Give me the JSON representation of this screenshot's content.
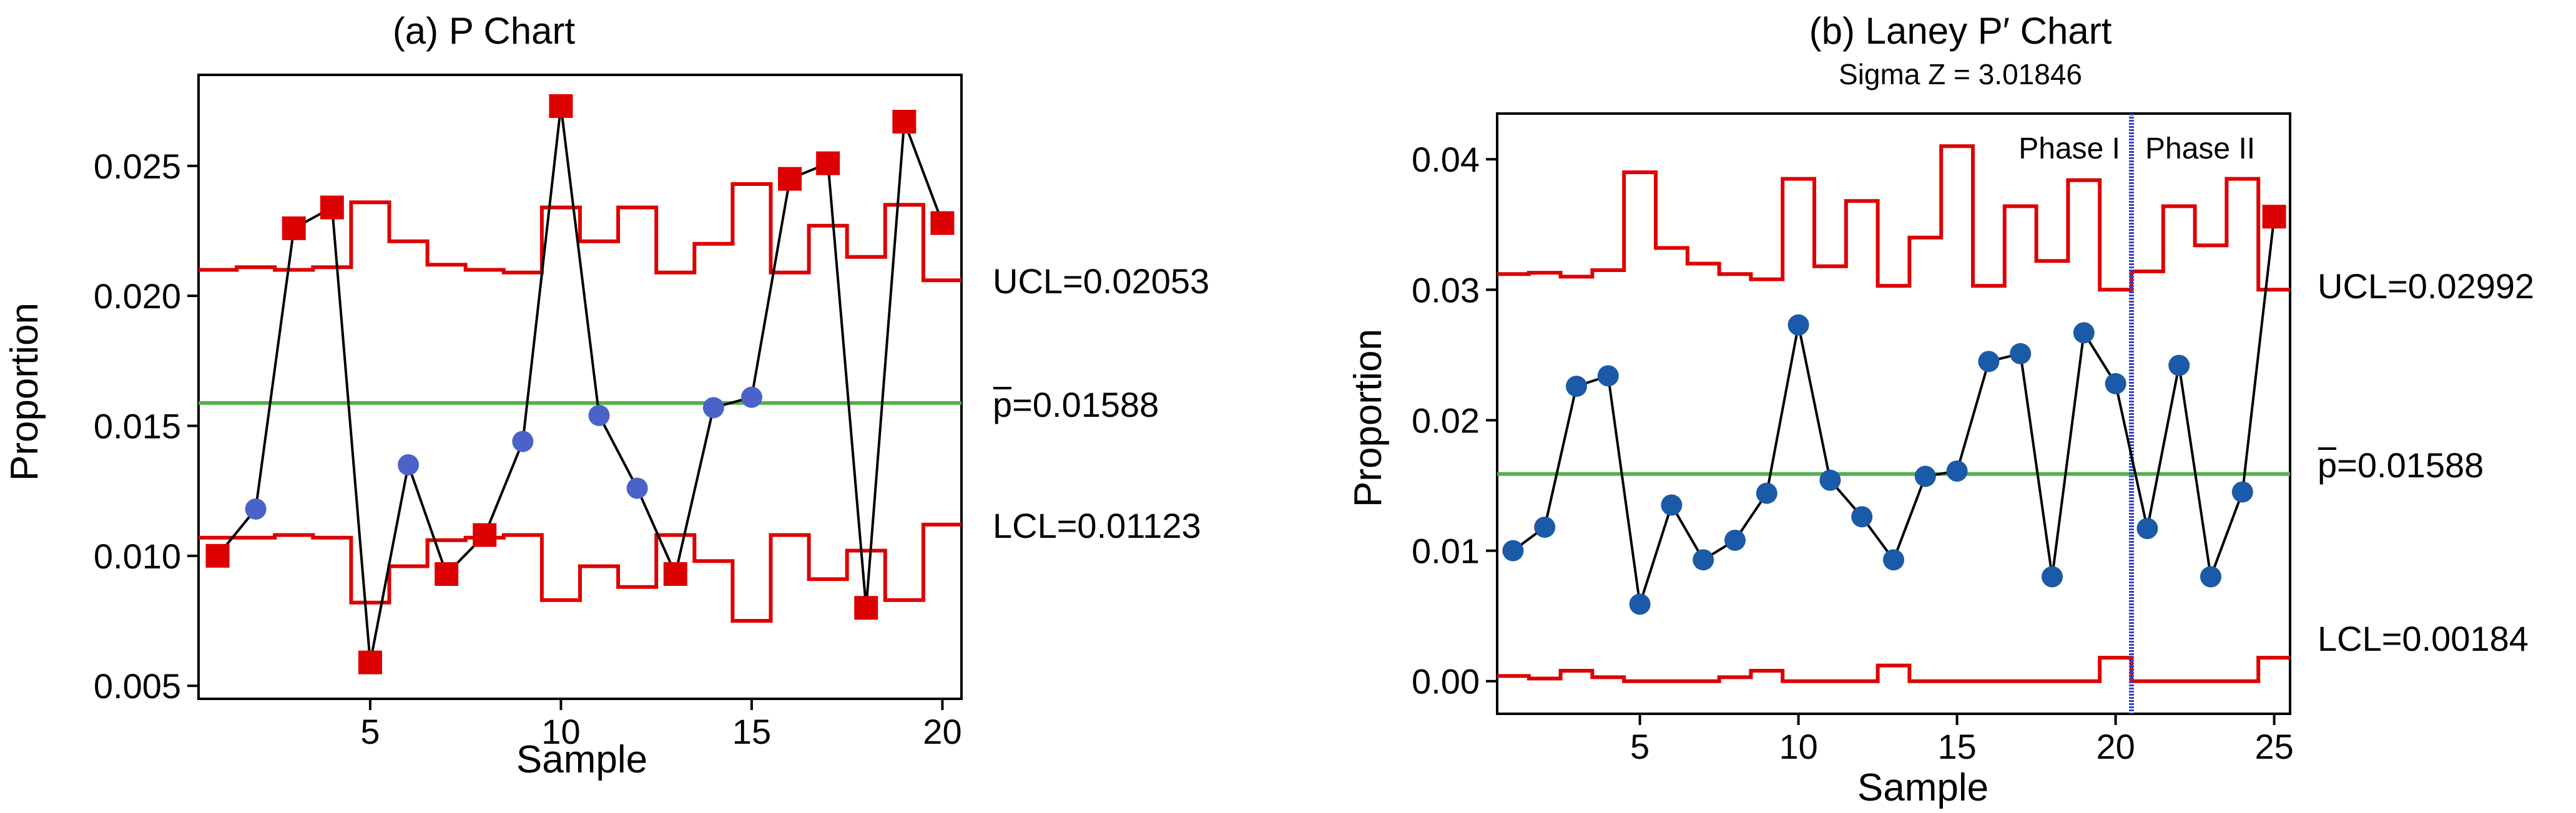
{
  "chart_data": [
    {
      "type": "line",
      "title": "(a) P Chart",
      "subtitle": "",
      "xlabel": "Sample",
      "ylabel": "Proportion",
      "xlim": [
        0.5,
        20.5
      ],
      "ylim": [
        0.0045,
        0.0285
      ],
      "xticks": [
        5,
        10,
        15,
        20
      ],
      "yticks": [
        0.005,
        0.01,
        0.015,
        0.02,
        0.025
      ],
      "ytick_labels": [
        "0.005",
        "0.010",
        "0.015",
        "0.020",
        "0.025"
      ],
      "center_line": 0.01588,
      "labels": {
        "ucl": "UCL=0.02053",
        "center_prefix": "p",
        "center_value": "=0.01588",
        "lcl": "LCL=0.01123"
      },
      "x": [
        1,
        2,
        3,
        4,
        5,
        6,
        7,
        8,
        9,
        10,
        11,
        12,
        13,
        14,
        15,
        16,
        17,
        18,
        19,
        20
      ],
      "values": [
        0.01,
        0.0118,
        0.0226,
        0.0234,
        0.0059,
        0.0135,
        0.0093,
        0.0108,
        0.0144,
        0.0273,
        0.0154,
        0.0126,
        0.0093,
        0.0157,
        0.0161,
        0.0245,
        0.0251,
        0.008,
        0.0267,
        0.0228
      ],
      "out_of_control": [
        true,
        false,
        true,
        true,
        true,
        false,
        true,
        true,
        false,
        true,
        false,
        false,
        true,
        false,
        false,
        true,
        true,
        true,
        true,
        true
      ],
      "ucl": [
        0.021,
        0.0211,
        0.021,
        0.0211,
        0.0236,
        0.0221,
        0.0212,
        0.021,
        0.0209,
        0.0234,
        0.0221,
        0.0234,
        0.0209,
        0.022,
        0.0243,
        0.0209,
        0.0227,
        0.0215,
        0.0235,
        0.0206
      ],
      "lcl": [
        0.0107,
        0.0107,
        0.0108,
        0.0107,
        0.0082,
        0.0096,
        0.0106,
        0.0107,
        0.0108,
        0.0083,
        0.0096,
        0.0088,
        0.0108,
        0.0098,
        0.0075,
        0.0108,
        0.0091,
        0.0102,
        0.0083,
        0.0112
      ],
      "colors": {
        "points_in": "#4b63c8",
        "points_out": "#dd0000",
        "limits": "#dd0000",
        "center": "#55b04a",
        "line": "#000000"
      }
    },
    {
      "type": "line",
      "title": "(b) Laney P′ Chart",
      "subtitle": "Sigma Z = 3.01846",
      "xlabel": "Sample",
      "ylabel": "Proportion",
      "xlim": [
        0.5,
        25.5
      ],
      "ylim": [
        -0.0025,
        0.0435
      ],
      "xticks": [
        5,
        10,
        15,
        20,
        25
      ],
      "yticks": [
        0.0,
        0.01,
        0.02,
        0.03,
        0.04
      ],
      "ytick_labels": [
        "0.00",
        "0.01",
        "0.02",
        "0.03",
        "0.04"
      ],
      "center_line": 0.01588,
      "labels": {
        "ucl": "UCL=0.02992",
        "center_prefix": "p",
        "center_value": "=0.01588",
        "lcl": "LCL=0.00184"
      },
      "phase_split": 20.5,
      "phases": [
        "Phase I",
        "Phase II"
      ],
      "x": [
        1,
        2,
        3,
        4,
        5,
        6,
        7,
        8,
        9,
        10,
        11,
        12,
        13,
        14,
        15,
        16,
        17,
        18,
        19,
        20,
        21,
        22,
        23,
        24,
        25
      ],
      "values": [
        0.01,
        0.0118,
        0.0226,
        0.0234,
        0.0059,
        0.0135,
        0.0093,
        0.0108,
        0.0144,
        0.0273,
        0.0154,
        0.0126,
        0.0093,
        0.0157,
        0.0161,
        0.0245,
        0.0251,
        0.008,
        0.0267,
        0.0228,
        0.0117,
        0.0242,
        0.008,
        0.0145,
        0.0356
      ],
      "out_of_control": [
        false,
        false,
        false,
        false,
        false,
        false,
        false,
        false,
        false,
        false,
        false,
        false,
        false,
        false,
        false,
        false,
        false,
        false,
        false,
        false,
        false,
        false,
        false,
        false,
        true
      ],
      "ucl": [
        0.0312,
        0.0313,
        0.031,
        0.0315,
        0.039,
        0.0332,
        0.032,
        0.0312,
        0.0308,
        0.0385,
        0.0318,
        0.0368,
        0.0303,
        0.034,
        0.041,
        0.0303,
        0.0364,
        0.0322,
        0.0384,
        0.03,
        0.0314,
        0.0364,
        0.0334,
        0.0385,
        0.03
      ],
      "lcl": [
        0.0004,
        0.0002,
        0.0008,
        0.0003,
        0.0,
        0.0,
        0.0,
        0.0003,
        0.0008,
        0.0,
        0.0,
        0.0,
        0.0012,
        0.0,
        0.0,
        0.0,
        0.0,
        0.0,
        0.0,
        0.0018,
        0.0,
        0.0,
        0.0,
        0.0,
        0.0018
      ],
      "colors": {
        "points_in": "#1a5aa8",
        "points_out": "#dd0000",
        "limits": "#dd0000",
        "center": "#55b04a",
        "line": "#000000",
        "phase_line": "#3344cc"
      }
    }
  ]
}
